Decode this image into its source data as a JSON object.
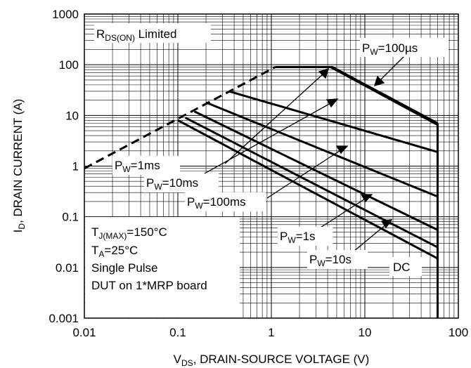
{
  "chart_data": {
    "type": "line",
    "x_scale": "log",
    "y_scale": "log",
    "xlim": [
      0.01,
      100
    ],
    "ylim": [
      0.001,
      1000
    ],
    "grid": true,
    "x_ticks": [
      "0.01",
      "0.1",
      "1",
      "10",
      "100"
    ],
    "y_ticks": [
      "0.001",
      "0.01",
      "0.1",
      "1",
      "10",
      "100",
      "1000"
    ],
    "xlabel": {
      "main": "V",
      "sub": "DS",
      "rest": ", DRAIN-SOURCE VOLTAGE (V)"
    },
    "ylabel": {
      "main": "I",
      "sub": "D",
      "rest": ", DRAIN CURRENT (A)"
    },
    "series": [
      {
        "name": "RDS(ON) Limited",
        "style": "dashed",
        "points": [
          [
            0.01,
            0.9
          ],
          [
            1.1,
            90
          ]
        ]
      },
      {
        "name": "PW=100µs",
        "points": [
          [
            1.1,
            90
          ],
          [
            4.5,
            90
          ],
          [
            60,
            7
          ]
        ]
      },
      {
        "name": "PW=1ms",
        "points": [
          [
            1.1,
            90
          ],
          [
            4.3,
            90
          ],
          [
            60,
            6.5
          ]
        ]
      },
      {
        "name": "PW=10ms",
        "points": [
          [
            0.35,
            30
          ],
          [
            60,
            1.9
          ]
        ]
      },
      {
        "name": "PW=100ms",
        "points": [
          [
            0.2,
            18
          ],
          [
            60,
            0.25
          ]
        ]
      },
      {
        "name": "PW=1s",
        "points": [
          [
            0.15,
            12
          ],
          [
            60,
            0.055
          ]
        ]
      },
      {
        "name": "PW=10s",
        "points": [
          [
            0.12,
            9
          ],
          [
            60,
            0.025
          ]
        ]
      },
      {
        "name": "DC",
        "points": [
          [
            0.1,
            8
          ],
          [
            60,
            0.015
          ]
        ]
      },
      {
        "name": "VDS limit",
        "points": [
          [
            60,
            0.001
          ],
          [
            60,
            7
          ]
        ]
      }
    ],
    "labels": {
      "rds": {
        "main": "R",
        "sub": "DS(ON)",
        "rest": " Limited"
      },
      "pw100us": {
        "main": "P",
        "sub": "W",
        "rest": "=100µs"
      },
      "pw1ms": {
        "main": "P",
        "sub": "W",
        "rest": "=1ms"
      },
      "pw10ms": {
        "main": "P",
        "sub": "W",
        "rest": "=10ms"
      },
      "pw100ms": {
        "main": "P",
        "sub": "W",
        "rest": "=100ms"
      },
      "pw1s": {
        "main": "P",
        "sub": "W",
        "rest": "=1s"
      },
      "pw10s": {
        "main": "P",
        "sub": "W",
        "rest": "=10s"
      },
      "dc": "DC"
    },
    "conditions": {
      "tj": {
        "main": "T",
        "sub": "J(MAX)",
        "rest": "=150°C"
      },
      "ta": {
        "main": "T",
        "sub": "A",
        "rest": "=25°C"
      },
      "pulse": "Single Pulse",
      "board": "DUT on 1*MRP board"
    }
  }
}
